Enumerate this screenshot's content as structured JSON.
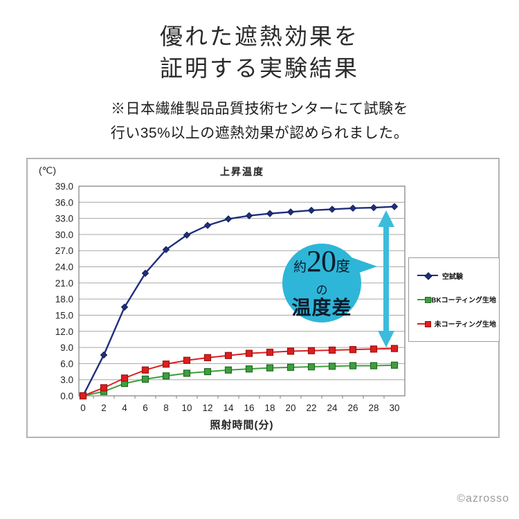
{
  "page": {
    "title_line1": "優れた遮熱効果を",
    "title_line2": "証明する実験結果",
    "note_line1": "※日本繊維製品品質技術センターにて試験を",
    "note_line2": "行い35%以上の遮熱効果が認められました。",
    "copyright": "©azrosso"
  },
  "annotation": {
    "prefix": "約",
    "big_number": "20",
    "degree": "度",
    "middle": "の",
    "bottom": "温度差",
    "bubble_color": "#2eb6d8",
    "arrow_color": "#3bbcdc"
  },
  "chart_data": {
    "type": "line",
    "title": "上昇温度",
    "y_unit_label": "(℃)",
    "xlabel": "照射時間(分)",
    "x": [
      0,
      2,
      4,
      6,
      8,
      10,
      12,
      14,
      16,
      18,
      20,
      22,
      24,
      26,
      28,
      30
    ],
    "ylim": [
      0,
      39
    ],
    "y_tick_step": 3,
    "grid": true,
    "legend_position": "right",
    "series": [
      {
        "name": "空試験",
        "color": "#1f2f7d",
        "marker": "diamond",
        "marker_border": "#141f55",
        "values": [
          0.0,
          7.6,
          16.5,
          22.8,
          27.2,
          29.9,
          31.7,
          32.9,
          33.5,
          33.9,
          34.2,
          34.5,
          34.7,
          34.9,
          35.0,
          35.2
        ]
      },
      {
        "name": "BKコーティング生地",
        "color": "#3f9e3f",
        "marker": "square",
        "marker_border": "#1e6b1e",
        "values": [
          0.0,
          0.8,
          2.3,
          3.1,
          3.7,
          4.2,
          4.5,
          4.8,
          5.0,
          5.2,
          5.3,
          5.4,
          5.5,
          5.6,
          5.6,
          5.7
        ]
      },
      {
        "name": "未コーティング生地",
        "color": "#dc1f1f",
        "marker": "square",
        "marker_border": "#9e0f0f",
        "values": [
          0.0,
          1.5,
          3.3,
          4.8,
          5.9,
          6.6,
          7.1,
          7.5,
          7.9,
          8.1,
          8.3,
          8.4,
          8.5,
          8.6,
          8.7,
          8.8
        ]
      }
    ]
  }
}
